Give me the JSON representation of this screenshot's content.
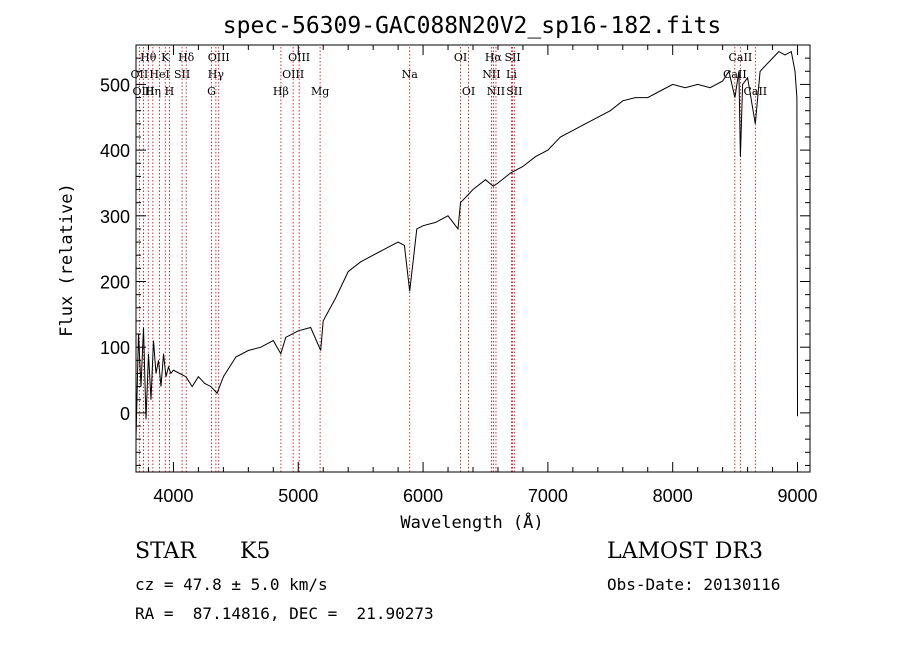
{
  "chart_data": {
    "type": "line",
    "title": "spec-56309-GAC088N20V2_sp16-182.fits",
    "xlabel": "Wavelength (Å)",
    "ylabel": "Flux (relative)",
    "xlim": [
      3700,
      9100
    ],
    "ylim": [
      -90,
      560
    ],
    "x_ticks": [
      4000,
      5000,
      6000,
      7000,
      8000,
      9000
    ],
    "y_ticks": [
      0,
      100,
      200,
      300,
      400,
      500
    ],
    "line_color": "#000000",
    "marker_color": "#c00000",
    "spectrum": {
      "x": [
        3700,
        3720,
        3740,
        3760,
        3780,
        3800,
        3820,
        3840,
        3860,
        3880,
        3900,
        3920,
        3940,
        3960,
        3980,
        4000,
        4050,
        4100,
        4150,
        4200,
        4250,
        4300,
        4350,
        4400,
        4500,
        4600,
        4700,
        4800,
        4860,
        4900,
        5000,
        5100,
        5180,
        5200,
        5300,
        5400,
        5500,
        5600,
        5700,
        5800,
        5850,
        5893,
        5950,
        6000,
        6100,
        6200,
        6280,
        6300,
        6350,
        6400,
        6500,
        6563,
        6600,
        6700,
        6800,
        6900,
        7000,
        7100,
        7200,
        7300,
        7400,
        7500,
        7600,
        7700,
        7800,
        7900,
        8000,
        8100,
        8200,
        8300,
        8400,
        8450,
        8498,
        8530,
        8542,
        8560,
        8600,
        8662,
        8700,
        8750,
        8800,
        8850,
        8900,
        8950,
        8980,
        8995,
        9000
      ],
      "y": [
        -40,
        120,
        40,
        130,
        -10,
        90,
        20,
        110,
        60,
        80,
        40,
        90,
        55,
        70,
        60,
        65,
        60,
        55,
        40,
        55,
        45,
        40,
        30,
        55,
        85,
        95,
        100,
        110,
        90,
        115,
        125,
        130,
        95,
        140,
        175,
        215,
        230,
        240,
        250,
        260,
        255,
        185,
        280,
        285,
        290,
        300,
        280,
        320,
        330,
        340,
        355,
        345,
        350,
        365,
        375,
        390,
        400,
        420,
        430,
        440,
        450,
        460,
        475,
        480,
        480,
        490,
        500,
        495,
        500,
        495,
        505,
        520,
        480,
        520,
        390,
        500,
        510,
        440,
        520,
        530,
        540,
        550,
        545,
        550,
        520,
        480,
        -5
      ]
    },
    "line_markers": [
      {
        "label": "Hθ",
        "x": 3798,
        "row": 0
      },
      {
        "label": "OII",
        "x": 3727,
        "row": 1
      },
      {
        "label": "OIII",
        "x": 3760,
        "row": 2
      },
      {
        "label": "Hη",
        "x": 3835,
        "row": 2
      },
      {
        "label": "HeI",
        "x": 3889,
        "row": 1
      },
      {
        "label": "K",
        "x": 3934,
        "row": 0
      },
      {
        "label": "SII",
        "x": 4069,
        "row": 1
      },
      {
        "label": "H",
        "x": 3968,
        "row": 2
      },
      {
        "label": "Hδ",
        "x": 4102,
        "row": 0
      },
      {
        "label": "OIII",
        "x": 4363,
        "row": 0
      },
      {
        "label": "Hγ",
        "x": 4340,
        "row": 1
      },
      {
        "label": "G",
        "x": 4305,
        "row": 2
      },
      {
        "label": "Hβ",
        "x": 4861,
        "row": 2
      },
      {
        "label": "OIII",
        "x": 5007,
        "row": 0
      },
      {
        "label": "OIII",
        "x": 4959,
        "row": 1
      },
      {
        "label": "Mg",
        "x": 5175,
        "row": 2
      },
      {
        "label": "Na",
        "x": 5893,
        "row": 1
      },
      {
        "label": "OI",
        "x": 6300,
        "row": 0
      },
      {
        "label": "OI",
        "x": 6364,
        "row": 2
      },
      {
        "label": "Hα",
        "x": 6563,
        "row": 0
      },
      {
        "label": "NII",
        "x": 6548,
        "row": 1
      },
      {
        "label": "NII",
        "x": 6584,
        "row": 2
      },
      {
        "label": "SII",
        "x": 6717,
        "row": 0
      },
      {
        "label": "Li",
        "x": 6708,
        "row": 1
      },
      {
        "label": "SII",
        "x": 6731,
        "row": 2
      },
      {
        "label": "CaII",
        "x": 8542,
        "row": 0
      },
      {
        "label": "CaII",
        "x": 8498,
        "row": 1
      },
      {
        "label": "CaII",
        "x": 8662,
        "row": 2
      }
    ]
  },
  "info": {
    "class": "STAR",
    "subclass": "K5",
    "survey": "LAMOST DR3",
    "cz": "cz = 47.8 ± 5.0 km/s",
    "obs_date": "Obs-Date: 20130116",
    "coords": "RA =  87.14816, DEC =  21.90273"
  }
}
